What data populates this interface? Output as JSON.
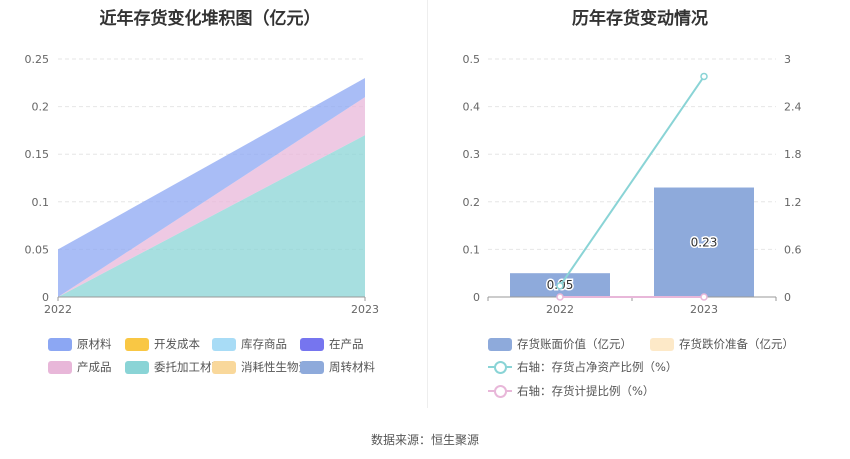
{
  "footer": "数据来源：恒生聚源",
  "chart_data": [
    {
      "type": "area",
      "title": "近年存货变化堆积图（亿元）",
      "x": [
        "2022",
        "2023"
      ],
      "ylim": [
        0,
        0.25
      ],
      "yticks": [
        "0",
        "0.05",
        "0.1",
        "0.15",
        "0.2",
        "0.25"
      ],
      "legend_position": "bottom",
      "stacking": "stacked",
      "series": [
        {
          "name": "原材料",
          "color": "#8ca7f3",
          "values": [
            0.05,
            0.02
          ]
        },
        {
          "name": "开发成本",
          "color": "#f9c744",
          "values": [
            0,
            0
          ]
        },
        {
          "name": "库存商品",
          "color": "#a8dcf6",
          "values": [
            0,
            0
          ]
        },
        {
          "name": "在产品",
          "color": "#7675ef",
          "values": [
            0,
            0
          ]
        },
        {
          "name": "产成品",
          "color": "#e8b7d9",
          "values": [
            0,
            0.04
          ]
        },
        {
          "name": "委托加工材料",
          "color": "#8ad4d6",
          "values": [
            0,
            0.17
          ]
        },
        {
          "name": "消耗性生物资产",
          "color": "#f9d89b",
          "values": [
            0,
            0
          ]
        },
        {
          "name": "周转材料",
          "color": "#8eaadb",
          "values": [
            0,
            0
          ]
        }
      ]
    },
    {
      "type": "bar",
      "title": "历年存货变动情况",
      "categories": [
        "2022",
        "2023"
      ],
      "ylim": [
        0,
        0.5
      ],
      "yticks": [
        "0",
        "0.1",
        "0.2",
        "0.3",
        "0.4",
        "0.5"
      ],
      "y2lim": [
        0,
        3
      ],
      "y2ticks": [
        "0",
        "0.6",
        "1.2",
        "1.8",
        "2.4",
        "3"
      ],
      "legend_position": "bottom",
      "series": [
        {
          "name": "存货账面价值（亿元）",
          "kind": "bar",
          "axis": "left",
          "color": "#8eaadb",
          "values": [
            0.05,
            0.23
          ],
          "labels": [
            "0.05",
            "0.23"
          ]
        },
        {
          "name": "存货跌价准备（亿元）",
          "kind": "bar",
          "axis": "left",
          "color": "#fde9c8",
          "values": [
            0,
            0
          ]
        },
        {
          "name": "右轴：存货占净资产比例（%）",
          "kind": "line",
          "axis": "right",
          "color": "#8ad4d6",
          "values": [
            0.14,
            2.78
          ]
        },
        {
          "name": "右轴：存货计提比例（%）",
          "kind": "line",
          "axis": "right",
          "color": "#e8b7d9",
          "values": [
            0,
            0
          ]
        }
      ]
    }
  ]
}
